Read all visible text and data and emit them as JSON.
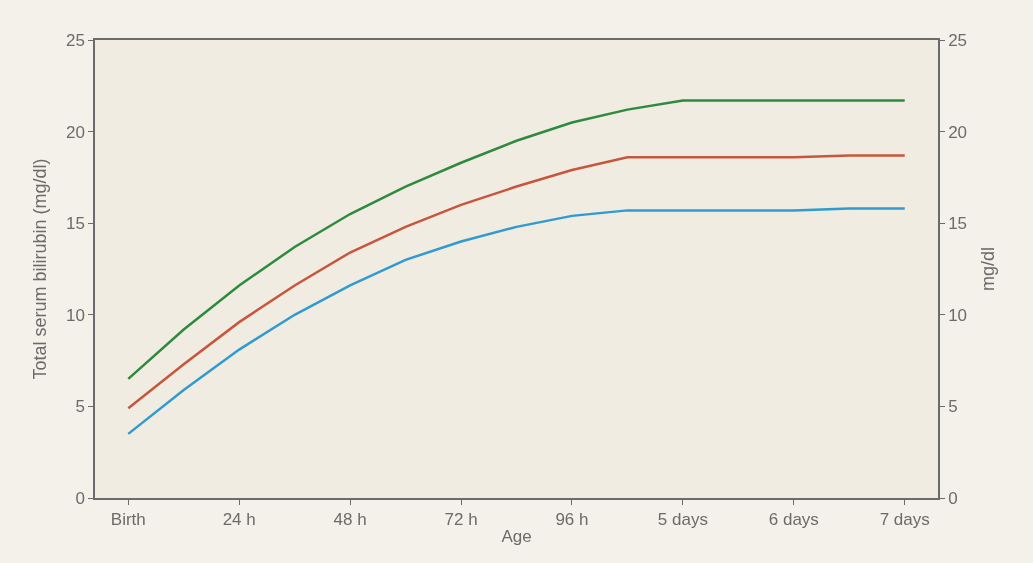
{
  "chart_data": {
    "type": "line",
    "xlabel": "Age",
    "ylabel": "Total serum bilirubin (mg/dl)",
    "y2label": "mg/dl",
    "categories": [
      "Birth",
      null,
      "24 h",
      null,
      "48 h",
      null,
      "72 h",
      null,
      "96 h",
      null,
      "5 days",
      null,
      "6 days",
      null,
      "7 days"
    ],
    "ylim": [
      0,
      25
    ],
    "yticks": [
      0,
      5,
      10,
      15,
      20,
      25
    ],
    "y2lim": [
      0,
      25
    ],
    "y2ticks": [
      0,
      5,
      10,
      15,
      20,
      25
    ],
    "grid": false,
    "line_style": "solid",
    "marker": "none",
    "series": [
      {
        "color": "#2e8b3e",
        "values": [
          6.5,
          9.2,
          11.6,
          13.7,
          15.5,
          17.0,
          18.3,
          19.5,
          20.5,
          21.2,
          21.7,
          21.7,
          21.7,
          21.7,
          21.7
        ]
      },
      {
        "color": "#c8553d",
        "values": [
          4.9,
          7.3,
          9.6,
          11.6,
          13.4,
          14.8,
          16.0,
          17.0,
          17.9,
          18.6,
          18.6,
          18.6,
          18.6,
          18.7,
          18.7
        ]
      },
      {
        "color": "#2f9bd0",
        "values": [
          3.5,
          5.9,
          8.1,
          10.0,
          11.6,
          13.0,
          14.0,
          14.8,
          15.4,
          15.7,
          15.7,
          15.7,
          15.7,
          15.8,
          15.8
        ]
      }
    ]
  }
}
